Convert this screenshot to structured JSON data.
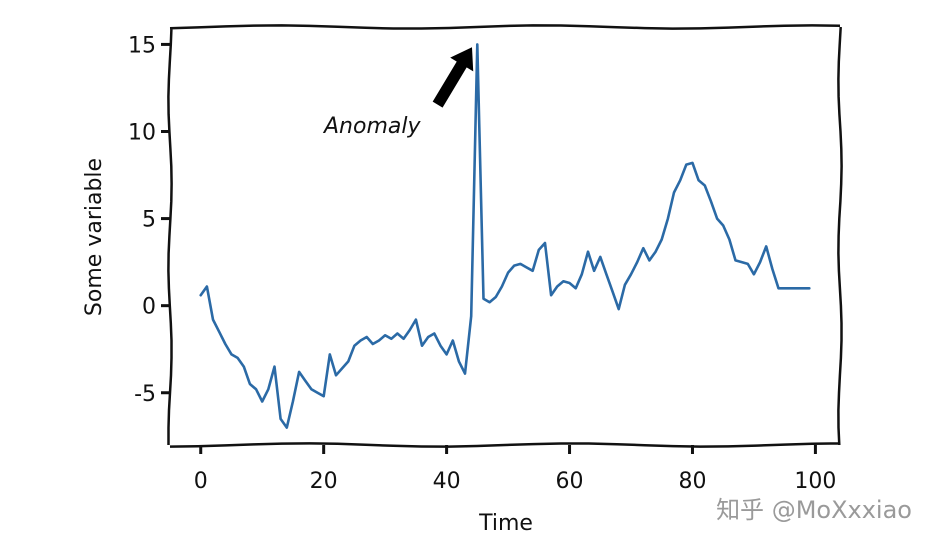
{
  "chart_data": {
    "type": "line",
    "title": "",
    "xlabel": "Time",
    "ylabel": "Some variable",
    "xlim": [
      -5,
      104
    ],
    "ylim": [
      -8,
      16
    ],
    "grid": false,
    "legend": "none",
    "style": "xkcd",
    "colors": {
      "line": "#2b6aa6",
      "axes": "#111111"
    },
    "x_ticks": [
      0,
      20,
      40,
      60,
      80,
      100
    ],
    "x_tick_labels": [
      "0",
      "20",
      "40",
      "60",
      "80",
      "100"
    ],
    "y_ticks": [
      -5,
      0,
      5,
      10,
      15
    ],
    "y_tick_labels": [
      "-5",
      "0",
      "5",
      "10",
      "15"
    ],
    "series": [
      {
        "x": [
          0,
          1,
          2,
          3,
          4,
          5,
          6,
          7,
          8,
          9,
          10,
          11,
          12,
          13,
          14,
          15,
          16,
          17,
          18,
          19,
          20,
          21,
          22,
          23,
          24,
          25,
          26,
          27,
          28,
          29,
          30,
          31,
          32,
          33,
          34,
          35,
          36,
          37,
          38,
          39,
          40,
          41,
          42,
          43,
          44,
          45,
          46,
          47,
          48,
          49,
          50,
          51,
          52,
          53,
          54,
          55,
          56,
          57,
          58,
          59,
          60,
          61,
          62,
          63,
          64,
          65,
          66,
          67,
          68,
          69,
          70,
          71,
          72,
          73,
          74,
          75,
          76,
          77,
          78,
          79,
          80,
          81,
          82,
          83,
          84,
          85,
          86,
          87,
          88,
          89,
          90,
          91,
          92,
          93,
          94,
          95,
          96,
          97,
          98,
          99
        ],
        "y": [
          0.6,
          1.1,
          -0.8,
          -1.5,
          -2.2,
          -2.8,
          -3.0,
          -3.5,
          -4.5,
          -4.8,
          -5.5,
          -4.8,
          -3.5,
          -6.5,
          -7.0,
          -5.5,
          -3.8,
          -4.3,
          -4.8,
          -5.0,
          -5.2,
          -2.8,
          -4.0,
          -3.6,
          -3.2,
          -2.3,
          -2.0,
          -1.8,
          -2.2,
          -2.0,
          -1.7,
          -1.9,
          -1.6,
          -1.9,
          -1.4,
          -0.8,
          -2.3,
          -1.8,
          -1.6,
          -2.3,
          -2.8,
          -2.0,
          -3.2,
          -3.9,
          -0.6,
          15.0,
          0.4,
          0.2,
          0.5,
          1.1,
          1.9,
          2.3,
          2.4,
          2.2,
          2.0,
          3.2,
          3.6,
          0.6,
          1.1,
          1.4,
          1.3,
          1.0,
          1.8,
          3.1,
          2.0,
          2.8,
          1.8,
          0.8,
          -0.2,
          1.2,
          1.8,
          2.5,
          3.3,
          2.6,
          3.1,
          3.8,
          5.0,
          6.5,
          7.2,
          8.1,
          8.2,
          7.2,
          6.9,
          6.0,
          5.0,
          4.6,
          3.8,
          2.6,
          2.5,
          2.4,
          1.8,
          2.5,
          3.4,
          2.1,
          1.0,
          1.0,
          1.0,
          1.0,
          1.0,
          1.0
        ]
      }
    ],
    "annotations": [
      {
        "text": "Anomaly",
        "points_to": {
          "x": 45,
          "y": 15
        }
      }
    ]
  },
  "watermark": "知乎 @MoXxxiao"
}
